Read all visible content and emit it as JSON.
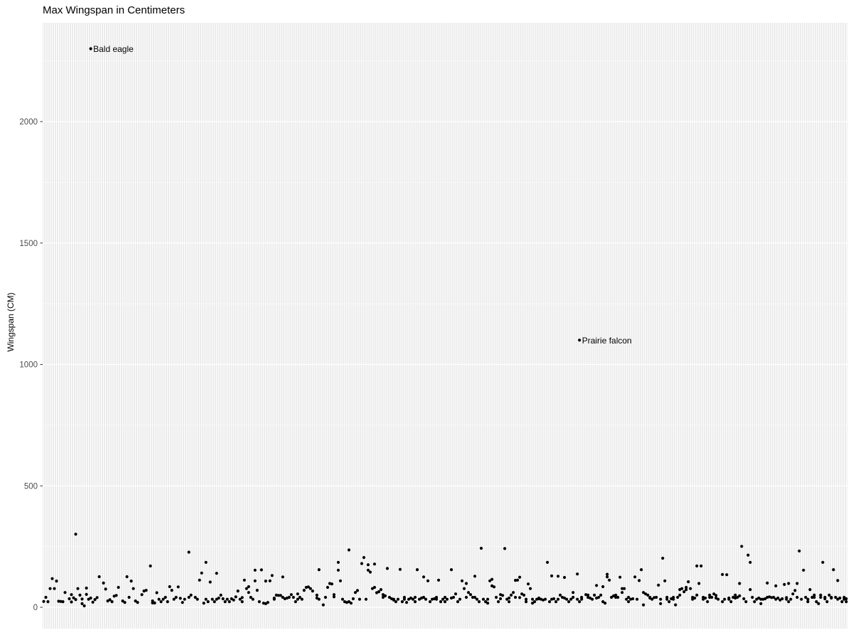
{
  "page": {
    "title": "Max Wingspan in Centimeters"
  },
  "chart_data": {
    "type": "scatter",
    "title": "Max Wingspan in Centimeters",
    "xlabel": "",
    "ylabel": "Wingspan (CM)",
    "legend": "none",
    "x_axis": {
      "type": "categorical",
      "n_categories": 377,
      "tick_labels_visible": false
    },
    "y_axis": {
      "ticks": [
        0,
        500,
        1000,
        1500,
        2000
      ],
      "minor_ticks": [
        250,
        750,
        1250,
        1750,
        2250
      ],
      "ylim": [
        -90,
        2420
      ]
    },
    "style": {
      "panel_bg": "#ebebeb",
      "gridline_color": "#ffffff",
      "point_color": "#000000",
      "tick_label_color": "#4d4d4d",
      "tick_mark_color": "#333333",
      "point_radius": 2.1
    },
    "annotations": [
      {
        "label": "Bald eagle",
        "x": 22,
        "y": 2300
      },
      {
        "label": "Prairie falcon",
        "x": 251,
        "y": 1100
      }
    ],
    "points": [
      [
        22,
        2300
      ],
      [
        251,
        1100
      ],
      [
        0,
        24
      ],
      [
        1,
        41
      ],
      [
        2,
        23
      ],
      [
        3,
        77
      ],
      [
        4,
        118
      ],
      [
        5,
        77
      ],
      [
        6,
        108
      ],
      [
        7,
        25
      ],
      [
        8,
        24
      ],
      [
        9,
        23
      ],
      [
        10,
        61
      ],
      [
        12,
        35
      ],
      [
        13,
        22
      ],
      [
        13,
        52
      ],
      [
        14,
        39
      ],
      [
        15,
        32
      ],
      [
        15,
        301
      ],
      [
        16,
        77
      ],
      [
        17,
        50
      ],
      [
        18,
        34
      ],
      [
        18,
        15
      ],
      [
        19,
        6
      ],
      [
        20,
        79
      ],
      [
        20,
        53
      ],
      [
        21,
        33
      ],
      [
        22,
        38
      ],
      [
        23,
        21
      ],
      [
        24,
        32
      ],
      [
        25,
        40
      ],
      [
        26,
        126
      ],
      [
        28,
        100
      ],
      [
        29,
        75
      ],
      [
        30,
        26
      ],
      [
        31,
        31
      ],
      [
        32,
        23
      ],
      [
        33,
        46
      ],
      [
        34,
        49
      ],
      [
        35,
        82
      ],
      [
        37,
        26
      ],
      [
        38,
        20
      ],
      [
        39,
        126
      ],
      [
        40,
        41
      ],
      [
        41,
        108
      ],
      [
        42,
        77
      ],
      [
        43,
        26
      ],
      [
        44,
        20
      ],
      [
        46,
        52
      ],
      [
        47,
        67
      ],
      [
        48,
        70
      ],
      [
        50,
        170
      ],
      [
        51,
        26
      ],
      [
        51,
        18
      ],
      [
        52,
        18
      ],
      [
        53,
        60
      ],
      [
        54,
        33
      ],
      [
        55,
        23
      ],
      [
        56,
        33
      ],
      [
        57,
        41
      ],
      [
        58,
        23
      ],
      [
        59,
        85
      ],
      [
        60,
        70
      ],
      [
        61,
        33
      ],
      [
        62,
        41
      ],
      [
        63,
        84
      ],
      [
        64,
        37
      ],
      [
        65,
        20
      ],
      [
        66,
        33
      ],
      [
        68,
        227
      ],
      [
        68,
        41
      ],
      [
        69,
        50
      ],
      [
        71,
        41
      ],
      [
        72,
        33
      ],
      [
        73,
        112
      ],
      [
        74,
        141
      ],
      [
        75,
        17
      ],
      [
        76,
        185
      ],
      [
        76,
        33
      ],
      [
        77,
        23
      ],
      [
        78,
        104
      ],
      [
        79,
        33
      ],
      [
        80,
        23
      ],
      [
        81,
        140
      ],
      [
        81,
        33
      ],
      [
        82,
        38
      ],
      [
        83,
        50
      ],
      [
        84,
        35
      ],
      [
        85,
        23
      ],
      [
        86,
        33
      ],
      [
        87,
        23
      ],
      [
        88,
        35
      ],
      [
        89,
        30
      ],
      [
        90,
        43
      ],
      [
        91,
        67
      ],
      [
        92,
        33
      ],
      [
        93,
        40
      ],
      [
        93,
        23
      ],
      [
        94,
        112
      ],
      [
        95,
        77
      ],
      [
        96,
        61
      ],
      [
        96,
        85
      ],
      [
        97,
        41
      ],
      [
        98,
        33
      ],
      [
        99,
        153
      ],
      [
        99,
        109
      ],
      [
        100,
        70
      ],
      [
        101,
        23
      ],
      [
        102,
        154
      ],
      [
        103,
        17
      ],
      [
        104,
        108
      ],
      [
        104,
        15
      ],
      [
        105,
        20
      ],
      [
        106,
        109
      ],
      [
        107,
        131
      ],
      [
        108,
        33
      ],
      [
        108,
        38
      ],
      [
        109,
        50
      ],
      [
        110,
        49
      ],
      [
        111,
        49
      ],
      [
        112,
        125
      ],
      [
        112,
        41
      ],
      [
        113,
        35
      ],
      [
        114,
        38
      ],
      [
        115,
        41
      ],
      [
        116,
        52
      ],
      [
        117,
        41
      ],
      [
        118,
        23
      ],
      [
        119,
        33
      ],
      [
        119,
        55
      ],
      [
        120,
        41
      ],
      [
        121,
        33
      ],
      [
        122,
        70
      ],
      [
        123,
        82
      ],
      [
        124,
        84
      ],
      [
        125,
        77
      ],
      [
        126,
        67
      ],
      [
        128,
        50
      ],
      [
        128,
        38
      ],
      [
        129,
        155
      ],
      [
        129,
        33
      ],
      [
        131,
        10
      ],
      [
        132,
        41
      ],
      [
        133,
        82
      ],
      [
        134,
        98
      ],
      [
        135,
        96
      ],
      [
        136,
        52
      ],
      [
        136,
        43
      ],
      [
        138,
        153
      ],
      [
        138,
        185
      ],
      [
        139,
        109
      ],
      [
        140,
        33
      ],
      [
        141,
        23
      ],
      [
        142,
        20
      ],
      [
        143,
        236
      ],
      [
        143,
        23
      ],
      [
        144,
        17
      ],
      [
        145,
        35
      ],
      [
        146,
        61
      ],
      [
        147,
        69
      ],
      [
        148,
        33
      ],
      [
        149,
        180
      ],
      [
        150,
        205
      ],
      [
        151,
        33
      ],
      [
        152,
        175
      ],
      [
        152,
        153
      ],
      [
        153,
        145
      ],
      [
        154,
        77
      ],
      [
        155,
        82
      ],
      [
        155,
        178
      ],
      [
        156,
        60
      ],
      [
        157,
        64
      ],
      [
        158,
        73
      ],
      [
        159,
        52
      ],
      [
        159,
        41
      ],
      [
        160,
        47
      ],
      [
        161,
        160
      ],
      [
        162,
        41
      ],
      [
        163,
        35
      ],
      [
        164,
        33
      ],
      [
        164,
        30
      ],
      [
        165,
        23
      ],
      [
        166,
        33
      ],
      [
        167,
        156
      ],
      [
        168,
        23
      ],
      [
        169,
        33
      ],
      [
        169,
        41
      ],
      [
        170,
        20
      ],
      [
        171,
        33
      ],
      [
        172,
        38
      ],
      [
        173,
        33
      ],
      [
        174,
        41
      ],
      [
        174,
        23
      ],
      [
        175,
        155
      ],
      [
        176,
        33
      ],
      [
        177,
        38
      ],
      [
        178,
        125
      ],
      [
        178,
        41
      ],
      [
        179,
        33
      ],
      [
        180,
        109
      ],
      [
        181,
        23
      ],
      [
        182,
        33
      ],
      [
        183,
        35
      ],
      [
        184,
        41
      ],
      [
        184,
        33
      ],
      [
        185,
        112
      ],
      [
        186,
        23
      ],
      [
        187,
        33
      ],
      [
        188,
        41
      ],
      [
        188,
        23
      ],
      [
        189,
        33
      ],
      [
        191,
        38
      ],
      [
        191,
        155
      ],
      [
        192,
        41
      ],
      [
        193,
        55
      ],
      [
        194,
        23
      ],
      [
        195,
        33
      ],
      [
        196,
        109
      ],
      [
        197,
        77
      ],
      [
        198,
        98
      ],
      [
        198,
        41
      ],
      [
        199,
        61
      ],
      [
        200,
        52
      ],
      [
        201,
        41
      ],
      [
        202,
        128
      ],
      [
        202,
        41
      ],
      [
        203,
        33
      ],
      [
        204,
        23
      ],
      [
        205,
        243
      ],
      [
        206,
        33
      ],
      [
        207,
        23
      ],
      [
        208,
        17
      ],
      [
        208,
        33
      ],
      [
        209,
        109
      ],
      [
        210,
        88
      ],
      [
        210,
        115
      ],
      [
        211,
        84
      ],
      [
        212,
        41
      ],
      [
        213,
        23
      ],
      [
        214,
        35
      ],
      [
        214,
        52
      ],
      [
        215,
        49
      ],
      [
        216,
        242
      ],
      [
        217,
        33
      ],
      [
        218,
        38
      ],
      [
        218,
        23
      ],
      [
        219,
        50
      ],
      [
        220,
        61
      ],
      [
        221,
        41
      ],
      [
        221,
        111
      ],
      [
        222,
        112
      ],
      [
        223,
        124
      ],
      [
        223,
        40
      ],
      [
        224,
        55
      ],
      [
        225,
        50
      ],
      [
        226,
        23
      ],
      [
        226,
        33
      ],
      [
        227,
        96
      ],
      [
        228,
        77
      ],
      [
        229,
        33
      ],
      [
        229,
        17
      ],
      [
        230,
        23
      ],
      [
        231,
        33
      ],
      [
        232,
        38
      ],
      [
        232,
        35
      ],
      [
        233,
        33
      ],
      [
        234,
        30
      ],
      [
        235,
        33
      ],
      [
        236,
        185
      ],
      [
        237,
        23
      ],
      [
        238,
        129
      ],
      [
        238,
        33
      ],
      [
        239,
        35
      ],
      [
        240,
        23
      ],
      [
        241,
        128
      ],
      [
        241,
        33
      ],
      [
        242,
        50
      ],
      [
        243,
        41
      ],
      [
        244,
        123
      ],
      [
        244,
        38
      ],
      [
        245,
        33
      ],
      [
        246,
        23
      ],
      [
        247,
        33
      ],
      [
        248,
        41
      ],
      [
        248,
        61
      ],
      [
        250,
        137
      ],
      [
        250,
        33
      ],
      [
        251,
        23
      ],
      [
        252,
        33
      ],
      [
        252,
        41
      ],
      [
        254,
        52
      ],
      [
        255,
        41
      ],
      [
        255,
        50
      ],
      [
        256,
        38
      ],
      [
        257,
        33
      ],
      [
        258,
        50
      ],
      [
        259,
        90
      ],
      [
        259,
        38
      ],
      [
        260,
        41
      ],
      [
        261,
        50
      ],
      [
        262,
        85
      ],
      [
        262,
        23
      ],
      [
        263,
        17
      ],
      [
        264,
        125
      ],
      [
        264,
        136
      ],
      [
        265,
        112
      ],
      [
        266,
        41
      ],
      [
        267,
        47
      ],
      [
        268,
        41
      ],
      [
        268,
        50
      ],
      [
        269,
        41
      ],
      [
        270,
        124
      ],
      [
        271,
        77
      ],
      [
        271,
        61
      ],
      [
        272,
        77
      ],
      [
        273,
        33
      ],
      [
        274,
        23
      ],
      [
        274,
        41
      ],
      [
        275,
        33
      ],
      [
        276,
        35
      ],
      [
        277,
        125
      ],
      [
        278,
        33
      ],
      [
        279,
        110
      ],
      [
        280,
        155
      ],
      [
        281,
        10
      ],
      [
        281,
        61
      ],
      [
        282,
        55
      ],
      [
        283,
        50
      ],
      [
        284,
        41
      ],
      [
        284,
        38
      ],
      [
        285,
        33
      ],
      [
        286,
        40
      ],
      [
        287,
        41
      ],
      [
        288,
        91
      ],
      [
        289,
        33
      ],
      [
        289,
        15
      ],
      [
        290,
        202
      ],
      [
        291,
        109
      ],
      [
        292,
        41
      ],
      [
        292,
        33
      ],
      [
        293,
        23
      ],
      [
        294,
        35
      ],
      [
        295,
        41
      ],
      [
        295,
        33
      ],
      [
        296,
        10
      ],
      [
        297,
        41
      ],
      [
        298,
        50
      ],
      [
        298,
        73
      ],
      [
        299,
        77
      ],
      [
        300,
        64
      ],
      [
        301,
        73
      ],
      [
        301,
        82
      ],
      [
        302,
        105
      ],
      [
        303,
        77
      ],
      [
        304,
        41
      ],
      [
        304,
        33
      ],
      [
        305,
        38
      ],
      [
        306,
        50
      ],
      [
        306,
        170
      ],
      [
        307,
        98
      ],
      [
        308,
        170
      ],
      [
        309,
        41
      ],
      [
        309,
        33
      ],
      [
        310,
        38
      ],
      [
        311,
        23
      ],
      [
        312,
        41
      ],
      [
        312,
        50
      ],
      [
        313,
        41
      ],
      [
        314,
        55
      ],
      [
        315,
        49
      ],
      [
        315,
        38
      ],
      [
        316,
        33
      ],
      [
        318,
        135
      ],
      [
        318,
        23
      ],
      [
        319,
        33
      ],
      [
        320,
        134
      ],
      [
        321,
        33
      ],
      [
        321,
        38
      ],
      [
        322,
        23
      ],
      [
        323,
        41
      ],
      [
        324,
        38
      ],
      [
        324,
        50
      ],
      [
        325,
        41
      ],
      [
        326,
        98
      ],
      [
        326,
        47
      ],
      [
        327,
        251
      ],
      [
        328,
        35
      ],
      [
        329,
        23
      ],
      [
        330,
        215
      ],
      [
        331,
        185
      ],
      [
        331,
        73
      ],
      [
        332,
        41
      ],
      [
        333,
        23
      ],
      [
        334,
        33
      ],
      [
        335,
        38
      ],
      [
        336,
        33
      ],
      [
        336,
        15
      ],
      [
        337,
        33
      ],
      [
        338,
        35
      ],
      [
        339,
        100
      ],
      [
        339,
        41
      ],
      [
        340,
        43
      ],
      [
        341,
        40
      ],
      [
        342,
        41
      ],
      [
        343,
        33
      ],
      [
        343,
        88
      ],
      [
        344,
        38
      ],
      [
        345,
        30
      ],
      [
        346,
        35
      ],
      [
        347,
        94
      ],
      [
        348,
        33
      ],
      [
        348,
        40
      ],
      [
        349,
        98
      ],
      [
        349,
        23
      ],
      [
        350,
        33
      ],
      [
        351,
        55
      ],
      [
        352,
        69
      ],
      [
        353,
        41
      ],
      [
        353,
        98
      ],
      [
        354,
        232
      ],
      [
        355,
        33
      ],
      [
        356,
        153
      ],
      [
        357,
        41
      ],
      [
        358,
        33
      ],
      [
        358,
        23
      ],
      [
        359,
        73
      ],
      [
        360,
        41
      ],
      [
        361,
        50
      ],
      [
        361,
        41
      ],
      [
        362,
        23
      ],
      [
        363,
        15
      ],
      [
        364,
        41
      ],
      [
        364,
        50
      ],
      [
        365,
        185
      ],
      [
        366,
        41
      ],
      [
        366,
        35
      ],
      [
        367,
        23
      ],
      [
        368,
        50
      ],
      [
        369,
        41
      ],
      [
        369,
        38
      ],
      [
        370,
        155
      ],
      [
        371,
        41
      ],
      [
        372,
        110
      ],
      [
        372,
        33
      ],
      [
        373,
        38
      ],
      [
        374,
        23
      ],
      [
        375,
        33
      ],
      [
        375,
        41
      ],
      [
        376,
        35
      ],
      [
        376,
        23
      ]
    ]
  }
}
